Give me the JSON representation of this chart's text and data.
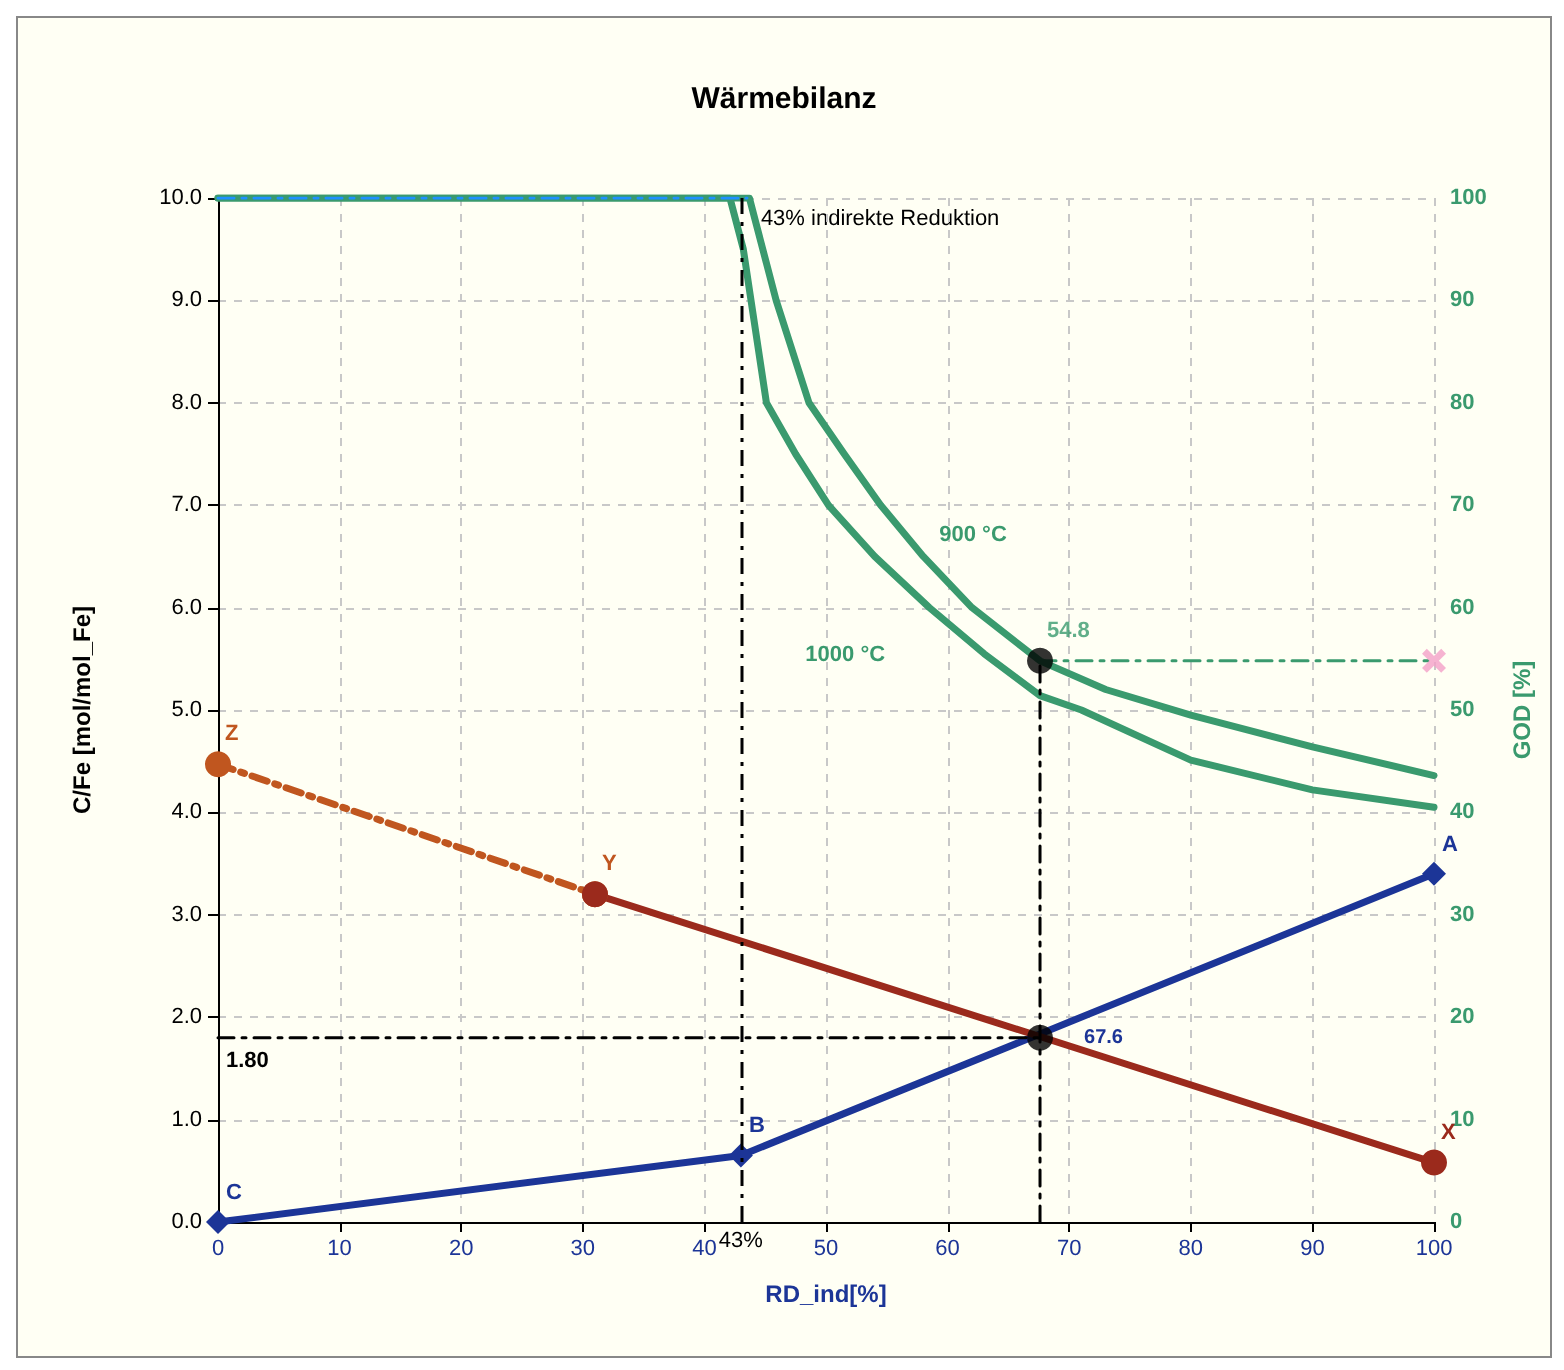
{
  "chart_data": {
    "type": "line",
    "title": "Wärmebilanz",
    "xlabel": "RD_ind[%]",
    "ylabel": "C/Fe [mol/mol_Fe]",
    "y2label": "GOD [%]",
    "xlim": [
      0,
      100
    ],
    "xticks": [
      0,
      10,
      20,
      30,
      40,
      50,
      60,
      70,
      80,
      90,
      100
    ],
    "ylim": [
      0,
      10
    ],
    "yticks": [
      {
        "value": 0,
        "label": "0.0"
      },
      {
        "value": 1,
        "label": "1.0"
      },
      {
        "value": 2,
        "label": "2.0"
      },
      {
        "value": 3,
        "label": "3.0"
      },
      {
        "value": 4,
        "label": "4.0"
      },
      {
        "value": 5,
        "label": "5.0"
      },
      {
        "value": 6,
        "label": "6.0"
      },
      {
        "value": 7,
        "label": "7.0"
      },
      {
        "value": 8,
        "label": "8.0"
      },
      {
        "value": 9,
        "label": "9.0"
      },
      {
        "value": 10,
        "label": "10.0"
      }
    ],
    "y2lim": [
      0,
      100
    ],
    "y2ticks": [
      0,
      10,
      20,
      30,
      40,
      50,
      60,
      70,
      80,
      90,
      100
    ],
    "grid": true,
    "legend": false,
    "series": [
      {
        "name": "1000 °C",
        "color": "#3a9a6e",
        "axis": "y2",
        "marker": "none",
        "x": [
          0,
          42.1,
          43.2,
          45.1,
          47.5,
          50.2,
          54,
          58.5,
          63,
          67.6,
          71,
          80,
          90,
          100
        ],
        "values": [
          100,
          100,
          95,
          80,
          75,
          70,
          65,
          60,
          55.5,
          51.4,
          50,
          45.1,
          42.2,
          40.5
        ]
      },
      {
        "name": "900 °C",
        "color": "#3a9a6e",
        "axis": "y2",
        "marker": "none",
        "x": [
          0,
          43.7,
          45.9,
          48.6,
          51.5,
          54.5,
          58,
          62,
          67.6,
          73,
          80,
          90,
          100
        ],
        "values": [
          100,
          100,
          90,
          80,
          75,
          70,
          65,
          60,
          54.8,
          52,
          49.5,
          46.4,
          43.6
        ]
      },
      {
        "color": "#1e90ff",
        "axis": "y2",
        "marker": "none",
        "line_style": "dashed",
        "x": [
          0,
          43.5
        ],
        "values": [
          100,
          100
        ]
      },
      {
        "color": "#1c3597",
        "marker": "diamond",
        "x": [
          0,
          43,
          100
        ],
        "values": [
          0,
          0.65,
          3.4
        ],
        "value_labels": [
          "C",
          "B",
          "A"
        ]
      },
      {
        "color": "#c0561f",
        "marker": "circle",
        "line_style": "dashed",
        "x": [
          0,
          31
        ],
        "values": [
          4.47,
          3.2
        ],
        "value_labels": [
          "Z",
          "Y"
        ]
      },
      {
        "color": "#9b2a1c",
        "marker": "circle",
        "x": [
          31,
          100
        ],
        "values": [
          3.2,
          0.58
        ],
        "value_labels": [
          null,
          "X"
        ]
      },
      {
        "color": "#000000",
        "marker": "none",
        "line_style": "dashed",
        "x": [
          0,
          67.6
        ],
        "values": [
          1.8,
          1.8
        ],
        "value_labels": [
          "1.80",
          null
        ]
      },
      {
        "color": "#000000",
        "marker": "none",
        "line_style": "dashed",
        "x": [
          67.6,
          67.6
        ],
        "values": [
          0,
          5.48
        ]
      },
      {
        "color": "#3a9a6e",
        "axis": "y2",
        "marker": "none",
        "line_style": "dashed",
        "x": [
          67.6,
          100
        ],
        "values": [
          54.8,
          54.8
        ]
      },
      {
        "type": "scatter",
        "color": "#000000",
        "marker": "circle",
        "x": [
          67.6
        ],
        "values": [
          1.8
        ]
      },
      {
        "type": "scatter",
        "color": "#000000",
        "axis": "y2",
        "marker": "circle",
        "x": [
          67.6
        ],
        "values": [
          54.8
        ],
        "value_labels": [
          "54.8"
        ]
      },
      {
        "type": "scatter",
        "color": "#f4a0c8",
        "axis": "y2",
        "marker": "cross",
        "x": [
          100
        ],
        "values": [
          54.8
        ]
      }
    ],
    "ref_lines": [
      {
        "axis": "x",
        "value": 43,
        "label": "43%",
        "color": "#000000",
        "line_style": "dashed"
      }
    ],
    "annotations": [
      {
        "text": "43% indirekte Reduktion",
        "x": 43,
        "y": 10
      },
      {
        "text": "67.6",
        "x": 67.6,
        "y": 1.8
      }
    ]
  }
}
